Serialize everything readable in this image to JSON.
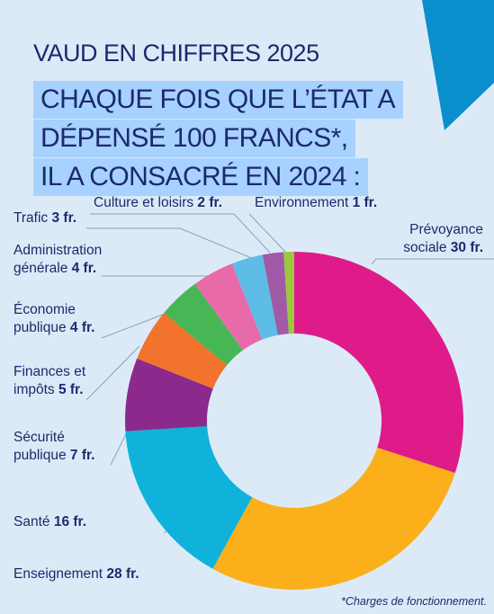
{
  "kicker": "VAUD EN CHIFFRES 2025",
  "headline": [
    "CHAQUE FOIS QUE L’ÉTAT A",
    "DÉPENSÉ 100 FRANCS*,",
    "IL A CONSACRÉ EN 2024 :"
  ],
  "footnote": "*Charges de fonctionnement.",
  "colors": {
    "background": "#dceaf8",
    "corner": "#0a8fcd",
    "headline_highlight": "#a7d1ff",
    "text": "#1b2a6b"
  },
  "chart_data": {
    "type": "pie",
    "variant": "donut",
    "total": 100,
    "unit": "fr.",
    "slices": [
      {
        "label": "Prévoyance sociale",
        "label_lines": [
          "Prévoyance",
          "sociale"
        ],
        "value": 30,
        "value_text": "30 fr.",
        "color": "#df1b8a"
      },
      {
        "label": "Enseignement",
        "label_lines": [
          "Enseignement"
        ],
        "value": 28,
        "value_text": "28 fr.",
        "color": "#fbaf1b"
      },
      {
        "label": "Santé",
        "label_lines": [
          "Santé"
        ],
        "value": 16,
        "value_text": "16 fr.",
        "color": "#0fb2db"
      },
      {
        "label": "Sécurité publique",
        "label_lines": [
          "Sécurité",
          "publique"
        ],
        "value": 7,
        "value_text": "7 fr.",
        "color": "#8b2a8c"
      },
      {
        "label": "Finances et impôts",
        "label_lines": [
          "Finances et",
          "impôts"
        ],
        "value": 5,
        "value_text": "5 fr.",
        "color": "#f2732b"
      },
      {
        "label": "Économie publique",
        "label_lines": [
          "Économie",
          "publique"
        ],
        "value": 4,
        "value_text": "4 fr.",
        "color": "#46b754"
      },
      {
        "label": "Administration générale",
        "label_lines": [
          "Administration",
          "générale"
        ],
        "value": 4,
        "value_text": "4 fr.",
        "color": "#e86aa8"
      },
      {
        "label": "Trafic",
        "label_lines": [
          "Trafic"
        ],
        "value": 3,
        "value_text": "3 fr.",
        "color": "#5ebde6"
      },
      {
        "label": "Culture et loisirs",
        "label_lines": [
          "Culture et loisirs"
        ],
        "value": 2,
        "value_text": "2 fr.",
        "color": "#a05aa6"
      },
      {
        "label": "Environnement",
        "label_lines": [
          "Environnement"
        ],
        "value": 1,
        "value_text": "1 fr.",
        "color": "#9cc83d"
      }
    ]
  }
}
